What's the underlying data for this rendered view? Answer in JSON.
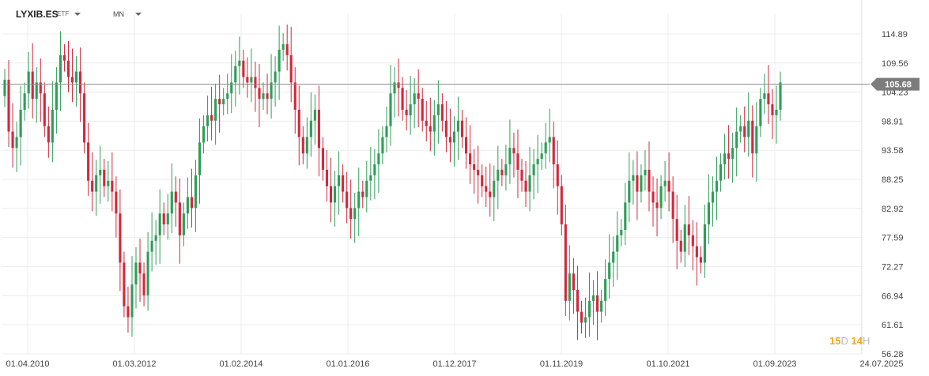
{
  "header": {
    "symbol": "LYXIB.ES",
    "type_label": "ETF",
    "interval": "MN"
  },
  "countdown": {
    "days": "15",
    "days_unit": "D",
    "hours": "14",
    "hours_unit": "H"
  },
  "colors": {
    "up": "#2f9e58",
    "down": "#d2283c",
    "grid": "#ececec",
    "price_line": "#8a8a8a",
    "price_tag": "#7c7c7c"
  },
  "chart_data": {
    "type": "candlestick",
    "title": "",
    "xlabel": "",
    "ylabel": "",
    "ylim": [
      56.28,
      118.5
    ],
    "yticks": [
      "114.89",
      "109.56",
      "104.23",
      "98.91",
      "93.58",
      "88.25",
      "82.92",
      "77.59",
      "72.27",
      "66.94",
      "61.61",
      "56.28"
    ],
    "xticks": [
      "01.04.2010",
      "01.03.2012",
      "01.02.2014",
      "01.01.2016",
      "01.12.2017",
      "01.11.2019",
      "01.10.2021",
      "01.09.2023",
      "24.07.2025"
    ],
    "grid": true,
    "current_price": "105.68",
    "closes": [
      106.5,
      97,
      94,
      96,
      101,
      104,
      108,
      103,
      106,
      104,
      98,
      95,
      101,
      106,
      111,
      110,
      107,
      106,
      108,
      104,
      95,
      88,
      86,
      89,
      90,
      87,
      88,
      86,
      82,
      73,
      65,
      63,
      69,
      73,
      71,
      67,
      75,
      77,
      78,
      82,
      80,
      82,
      86,
      84,
      78,
      82,
      85,
      83,
      89,
      95,
      98,
      100,
      99,
      103,
      102,
      103,
      104,
      106,
      109,
      110,
      107,
      106,
      107,
      105,
      103,
      104,
      103,
      106,
      108,
      112,
      113,
      111,
      106,
      101,
      96,
      93,
      96,
      99,
      101,
      94,
      90,
      87,
      84,
      87,
      89,
      86,
      83,
      81,
      83,
      86,
      85,
      88,
      89,
      91,
      93,
      96,
      98,
      104,
      106,
      105,
      101,
      100,
      102,
      104,
      103,
      99,
      98,
      97,
      100,
      102,
      99,
      96,
      95,
      97,
      99,
      96,
      93,
      91,
      90,
      89,
      87,
      86,
      85,
      88,
      90,
      89,
      91,
      94,
      93,
      90,
      88,
      86,
      89,
      91,
      92,
      93,
      95,
      96,
      91,
      87,
      80,
      66,
      71,
      68,
      64,
      62,
      63,
      66,
      67,
      64,
      66,
      70,
      73,
      75,
      78,
      79,
      84,
      88,
      89,
      86,
      89,
      90,
      86,
      84,
      83,
      87,
      88,
      86,
      81,
      77,
      75,
      80,
      78,
      76,
      74,
      73,
      80,
      84,
      86,
      88,
      91,
      93,
      92,
      94,
      97,
      98,
      96,
      99,
      93,
      98,
      103,
      104,
      102,
      100,
      101,
      106
    ]
  }
}
